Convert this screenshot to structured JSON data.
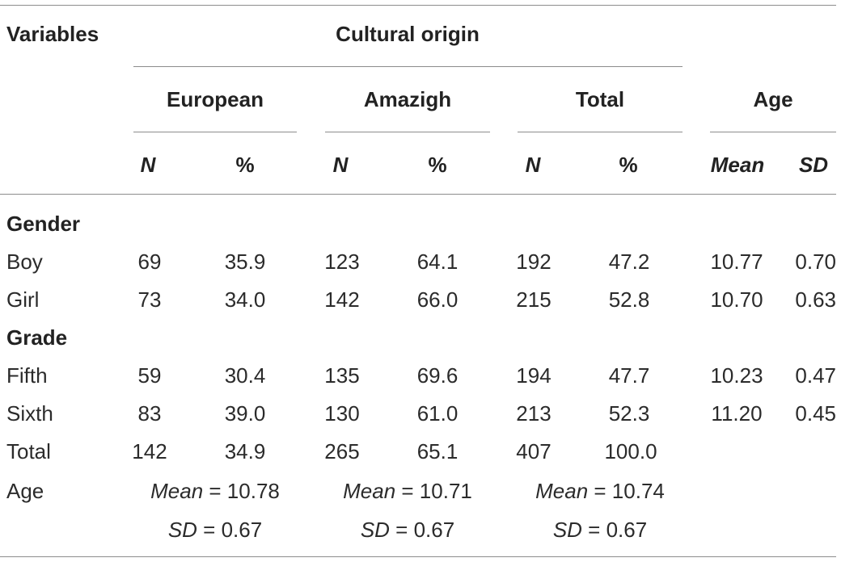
{
  "header": {
    "variables": "Variables",
    "cultural_origin": "Cultural origin",
    "groups": [
      "European",
      "Amazigh",
      "Total"
    ],
    "age": "Age",
    "n": "N",
    "pct": "%",
    "mean": "Mean",
    "sd": "SD"
  },
  "sections": [
    {
      "title": "Gender",
      "rows": [
        {
          "label": "Boy",
          "eu_n": "69",
          "eu_pct": "35.9",
          "am_n": "123",
          "am_pct": "64.1",
          "tot_n": "192",
          "tot_pct": "47.2",
          "age_mean": "10.77",
          "age_sd": "0.70"
        },
        {
          "label": "Girl",
          "eu_n": "73",
          "eu_pct": "34.0",
          "am_n": "142",
          "am_pct": "66.0",
          "tot_n": "215",
          "tot_pct": "52.8",
          "age_mean": "10.70",
          "age_sd": "0.63"
        }
      ]
    },
    {
      "title": "Grade",
      "rows": [
        {
          "label": "Fifth",
          "eu_n": "59",
          "eu_pct": "30.4",
          "am_n": "135",
          "am_pct": "69.6",
          "tot_n": "194",
          "tot_pct": "47.7",
          "age_mean": "10.23",
          "age_sd": "0.47"
        },
        {
          "label": "Sixth",
          "eu_n": "83",
          "eu_pct": "39.0",
          "am_n": "130",
          "am_pct": "61.0",
          "tot_n": "213",
          "tot_pct": "52.3",
          "age_mean": "11.20",
          "age_sd": "0.45"
        }
      ]
    }
  ],
  "total_row": {
    "label": "Total",
    "eu_n": "142",
    "eu_pct": "34.9",
    "am_n": "265",
    "am_pct": "65.1",
    "tot_n": "407",
    "tot_pct": "100.0"
  },
  "age_row": {
    "label": "Age",
    "mean_label": "Mean",
    "sd_label": "SD",
    "eu_mean": "= 10.78",
    "am_mean": "= 10.71",
    "tot_mean": "= 10.74",
    "eu_sd": "= 0.67",
    "am_sd": "= 0.67",
    "tot_sd": "= 0.67"
  }
}
